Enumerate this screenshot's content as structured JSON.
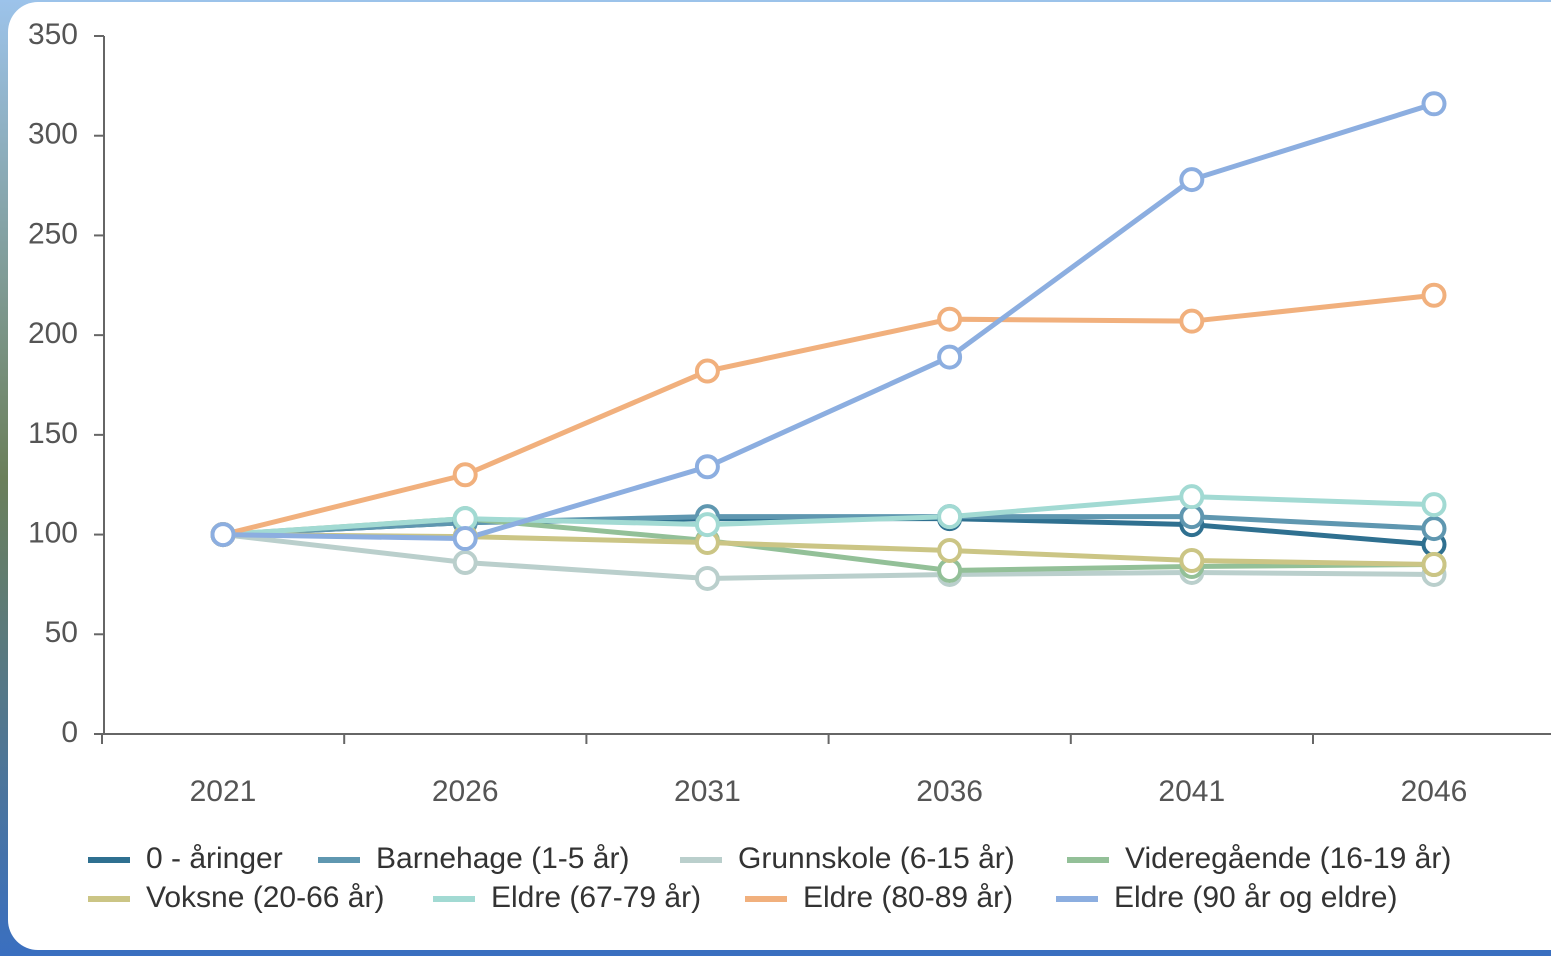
{
  "chart_data": {
    "type": "line",
    "categories": [
      "2021",
      "2026",
      "2031",
      "2036",
      "2041",
      "2046"
    ],
    "ylim": [
      0,
      350
    ],
    "yticks": [
      0,
      50,
      100,
      150,
      200,
      250,
      300,
      350
    ],
    "series": [
      {
        "name": "0 - åringer",
        "color": "#2f7090",
        "values": [
          100,
          106,
          108,
          108,
          105,
          95
        ]
      },
      {
        "name": "Barnehage (1-5 år)",
        "color": "#5f97b0",
        "values": [
          100,
          106,
          109,
          109,
          109,
          103
        ]
      },
      {
        "name": "Grunnskole (6-15 år)",
        "color": "#bacfcc",
        "values": [
          100,
          86,
          78,
          80,
          81,
          80
        ]
      },
      {
        "name": "Videregående (16-19 år)",
        "color": "#93c098",
        "values": [
          100,
          108,
          97,
          82,
          84,
          85
        ]
      },
      {
        "name": "Voksne (20-66 år)",
        "color": "#cbc585",
        "values": [
          100,
          99,
          96,
          92,
          87,
          85
        ]
      },
      {
        "name": "Eldre (67-79 år)",
        "color": "#a2dad3",
        "values": [
          100,
          108,
          105,
          109,
          119,
          115
        ]
      },
      {
        "name": "Eldre (80-89 år)",
        "color": "#f1b07d",
        "values": [
          100,
          130,
          182,
          208,
          207,
          220
        ]
      },
      {
        "name": "Eldre (90 år og eldre)",
        "color": "#8caee0",
        "values": [
          100,
          98,
          134,
          189,
          278,
          316
        ]
      }
    ]
  }
}
